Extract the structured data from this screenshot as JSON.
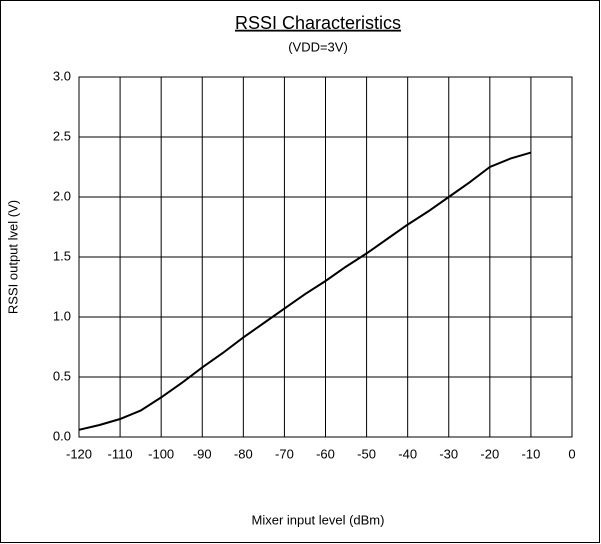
{
  "chart_data": {
    "type": "line",
    "title": "RSSI Characteristics",
    "subtitle": "(VDD=3V)",
    "xlabel": "Mixer input level  (dBm)",
    "ylabel": "RSSI output lvel (V)",
    "x": [
      -120,
      -115,
      -110,
      -105,
      -100,
      -95,
      -90,
      -85,
      -80,
      -75,
      -70,
      -65,
      -60,
      -55,
      -50,
      -45,
      -40,
      -35,
      -30,
      -25,
      -20,
      -15,
      -10
    ],
    "values": [
      0.06,
      0.1,
      0.15,
      0.22,
      0.33,
      0.45,
      0.58,
      0.7,
      0.83,
      0.95,
      1.07,
      1.19,
      1.3,
      1.42,
      1.53,
      1.65,
      1.77,
      1.88,
      2.0,
      2.12,
      2.25,
      2.32,
      2.37
    ],
    "color": "#000000",
    "xlim": [
      -120,
      0
    ],
    "xticks": [
      -120,
      -110,
      -100,
      -90,
      -80,
      -70,
      -60,
      -50,
      -40,
      -30,
      -20,
      -10,
      0
    ],
    "ylim": [
      0,
      3
    ],
    "yticks": [
      {
        "value": 0,
        "label": "0.0"
      },
      0.5,
      {
        "value": 1,
        "label": "1.0"
      },
      1.5,
      {
        "value": 2,
        "label": "2.0"
      },
      2.5,
      {
        "value": 3,
        "label": "3.0"
      }
    ],
    "grid": true
  }
}
